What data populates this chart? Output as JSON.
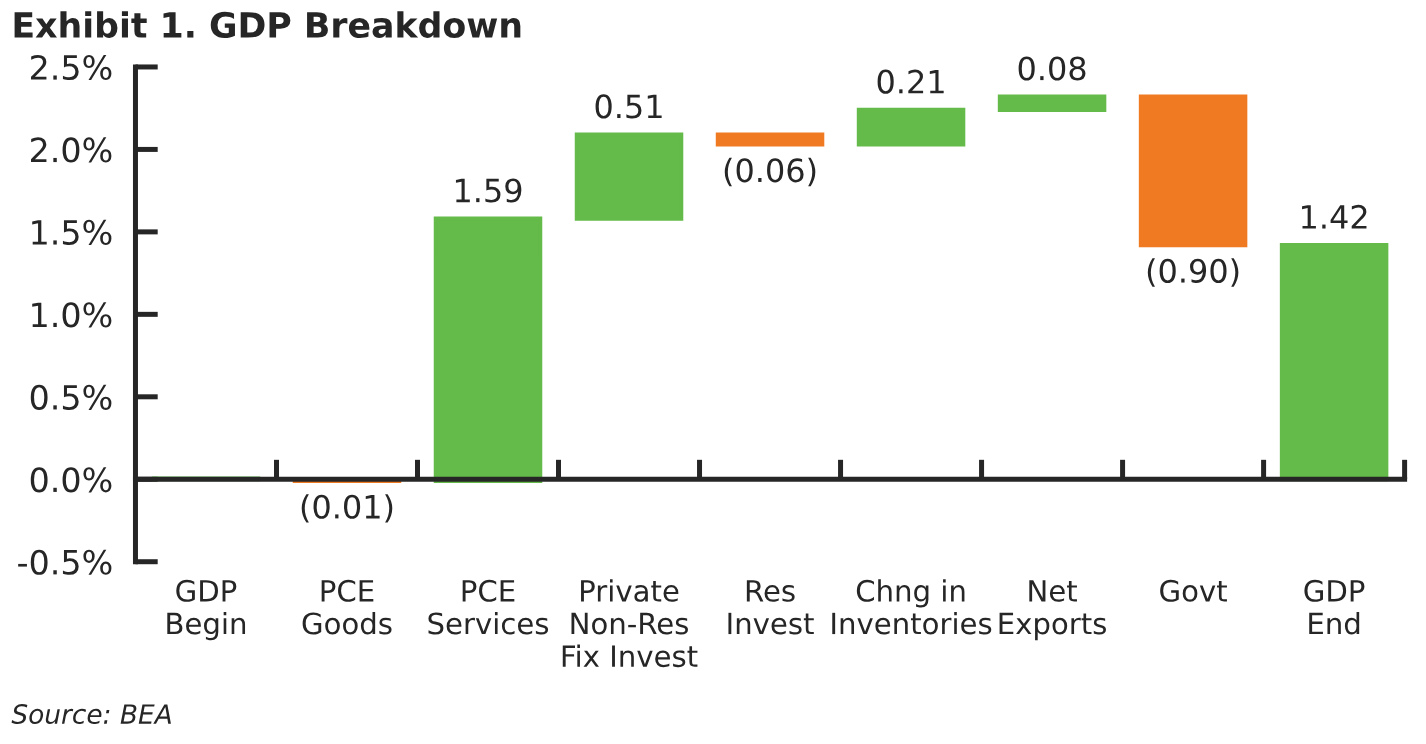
{
  "chart_data": {
    "type": "bar",
    "title": "Exhibit 1. GDP Breakdown",
    "categories": [
      "GDP\nBegin",
      "PCE\nGoods",
      "PCE\nServices",
      "Private\nNon-Res\nFix Invest",
      "Res\nInvest",
      "Chng in\nInventories",
      "Net\nExports",
      "Govt",
      "GDP\nEnd"
    ],
    "values": [
      0,
      -0.01,
      1.59,
      0.51,
      -0.06,
      0.21,
      0.08,
      -0.9,
      1.42
    ],
    "base": [
      0,
      0,
      -0.01,
      1.58,
      2.09,
      2.03,
      2.24,
      2.32,
      0
    ],
    "colors": [
      "#64bb4a",
      "#f07a22",
      "#64bb4a",
      "#64bb4a",
      "#f07a22",
      "#64bb4a",
      "#64bb4a",
      "#f07a22",
      "#64bb4a"
    ],
    "value_labels": [
      null,
      "(0.01)",
      "1.59",
      "0.51",
      "(0.06)",
      "0.21",
      "0.08",
      "(0.90)",
      "1.42"
    ],
    "ylim": [
      -0.5,
      2.5
    ],
    "yticks": [
      {
        "value": -0.5,
        "label": "-0.5%"
      },
      {
        "value": 0,
        "label": "0.0%"
      },
      {
        "value": 0.5,
        "label": "0.5%"
      },
      {
        "value": 1.0,
        "label": "1.0%"
      },
      {
        "value": 1.5,
        "label": "1.5%"
      },
      {
        "value": 2.0,
        "label": "2.0%"
      },
      {
        "value": 2.5,
        "label": "2.5%"
      }
    ],
    "legend": false,
    "annotations": [
      "Source: BEA"
    ]
  }
}
